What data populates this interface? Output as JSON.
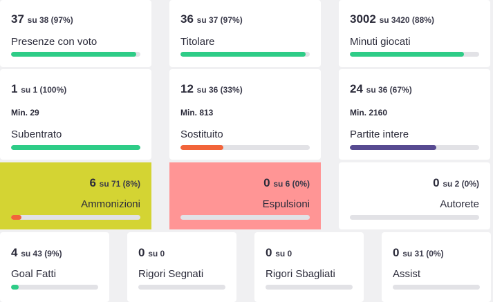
{
  "colors": {
    "green": "#2ecc87",
    "orange": "#f2643a",
    "purple": "#574a91",
    "yellow_bg": "#d4d433",
    "red_bg": "#ff9595",
    "track": "#e2e2e6"
  },
  "stats": {
    "presenze": {
      "value": "37",
      "rest": "su 38 (97%)",
      "label": "Presenze con voto",
      "progress": 0.97
    },
    "titolare": {
      "value": "36",
      "rest": "su 37 (97%)",
      "label": "Titolare",
      "progress": 0.97
    },
    "minuti": {
      "value": "3002",
      "rest": "su 3420 (88%)",
      "label": "Minuti giocati",
      "progress": 0.88
    },
    "subentrato": {
      "value": "1",
      "rest": "su 1 (100%)",
      "min": "Min. 29",
      "label": "Subentrato",
      "progress": 1.0
    },
    "sostituito": {
      "value": "12",
      "rest": "su 36 (33%)",
      "min": "Min. 813",
      "label": "Sostituito",
      "progress": 0.33
    },
    "intere": {
      "value": "24",
      "rest": "su 36 (67%)",
      "min": "Min. 2160",
      "label": "Partite intere",
      "progress": 0.67
    },
    "ammonizioni": {
      "value": "6",
      "rest": "su 71 (8%)",
      "label": "Ammonizioni",
      "progress": 0.08
    },
    "espulsioni": {
      "value": "0",
      "rest": "su 6 (0%)",
      "label": "Espulsioni",
      "progress": 0
    },
    "autorete": {
      "value": "0",
      "rest": "su 2 (0%)",
      "label": "Autorete",
      "progress": 0
    },
    "goal": {
      "value": "4",
      "rest": "su 43 (9%)",
      "label": "Goal Fatti",
      "progress": 0.09
    },
    "rigori_segnati": {
      "value": "0",
      "rest": "su 0",
      "label": "Rigori Segnati",
      "progress": 0
    },
    "rigori_sbagliati": {
      "value": "0",
      "rest": "su 0",
      "label": "Rigori Sbagliati",
      "progress": 0
    },
    "assist": {
      "value": "0",
      "rest": "su 31 (0%)",
      "label": "Assist",
      "progress": 0
    }
  }
}
